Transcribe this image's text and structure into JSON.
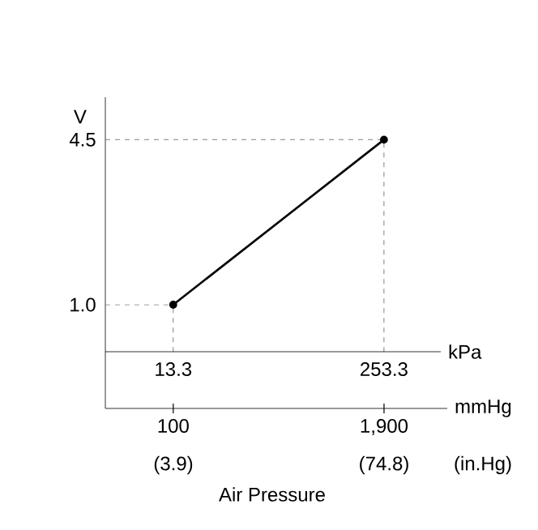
{
  "chart_data": {
    "type": "line",
    "ylabel": "V",
    "xlabel": "kPa",
    "x2label": "mmHg",
    "annotations": [
      "(3.9)",
      "(74.8)",
      "(in.Hg)",
      "Air Pressure"
    ],
    "x": [
      13.3,
      253.3
    ],
    "series": [
      {
        "color": "#000000",
        "values": [
          1.0,
          4.5
        ]
      }
    ],
    "xlim": [
      -64,
      318
    ],
    "xticks": [
      13.3,
      253.3
    ],
    "x2lim": [
      -480,
      2440
    ],
    "x2ticks": [
      {
        "value": 100,
        "label": "100"
      },
      {
        "value": 1900,
        "label": "1,900"
      }
    ],
    "ylim": [
      -1.2,
      5.4
    ],
    "yticks": [
      {
        "value": 1.0,
        "label": "1.0"
      },
      {
        "value": 4.5,
        "label": "4.5"
      }
    ],
    "ref_lines": [
      {
        "axis": "y",
        "value": 1.0,
        "color": "#808080",
        "line_style": "dashed"
      },
      {
        "axis": "y",
        "value": 4.5,
        "color": "#808080",
        "line_style": "dashed"
      },
      {
        "axis": "x",
        "value": 13.3,
        "color": "#808080",
        "line_style": "dashed"
      },
      {
        "axis": "x",
        "value": 253.3,
        "color": "#808080",
        "line_style": "dashed"
      }
    ],
    "marker": "circle",
    "line_style": "solid"
  }
}
